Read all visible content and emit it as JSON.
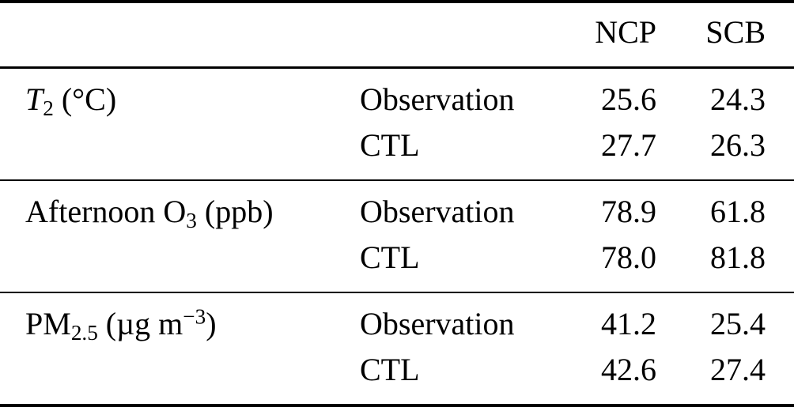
{
  "page": {
    "background": "#ffffff",
    "text_color": "#000000",
    "rule_color": "#000000"
  },
  "table": {
    "col_headers": {
      "region_1": "NCP",
      "region_2": "SCB"
    },
    "sections": [
      {
        "variable_parts": [
          {
            "style": "italic",
            "text": "T"
          },
          {
            "style": "sub",
            "text": "2"
          },
          {
            "style": "normal",
            "text": " (°C)"
          }
        ],
        "rows": [
          {
            "source": "Observation",
            "ncp": "25.6",
            "scb": "24.3"
          },
          {
            "source": "CTL",
            "ncp": "27.7",
            "scb": "26.3"
          }
        ]
      },
      {
        "variable_parts": [
          {
            "style": "normal",
            "text": "Afternoon O"
          },
          {
            "style": "sub",
            "text": "3"
          },
          {
            "style": "normal",
            "text": " (ppb)"
          }
        ],
        "rows": [
          {
            "source": "Observation",
            "ncp": "78.9",
            "scb": "61.8"
          },
          {
            "source": "CTL",
            "ncp": "78.0",
            "scb": "81.8"
          }
        ]
      },
      {
        "variable_parts": [
          {
            "style": "normal",
            "text": "PM"
          },
          {
            "style": "sub",
            "text": "2.5"
          },
          {
            "style": "normal",
            "text": " (µg m"
          },
          {
            "style": "sup",
            "text": "−3"
          },
          {
            "style": "normal",
            "text": ")"
          }
        ],
        "rows": [
          {
            "source": "Observation",
            "ncp": "41.2",
            "scb": "25.4"
          },
          {
            "source": "CTL",
            "ncp": "42.6",
            "scb": "27.4"
          }
        ]
      }
    ]
  }
}
